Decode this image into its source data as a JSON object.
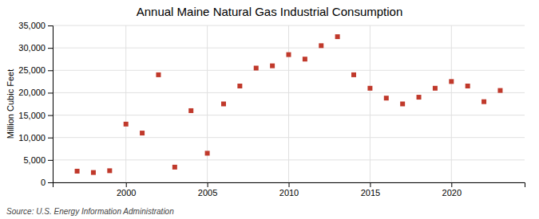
{
  "chart_data": {
    "type": "scatter",
    "title": "Annual Maine Natural Gas Industrial Consumption",
    "y_label": "Million Cubic Feet",
    "annotations": [
      "Source: U.S. Energy Information Administration"
    ],
    "x": [
      1997,
      1998,
      1999,
      2000,
      2001,
      2002,
      2003,
      2004,
      2005,
      2006,
      2007,
      2008,
      2009,
      2010,
      2011,
      2012,
      2013,
      2014,
      2015,
      2016,
      2017,
      2018,
      2019,
      2020,
      2021,
      2022,
      2023
    ],
    "values": [
      2500,
      2200,
      2600,
      13000,
      11000,
      24000,
      3400,
      16000,
      6500,
      17500,
      21500,
      25500,
      26000,
      28500,
      27500,
      30500,
      32500,
      24000,
      21000,
      18800,
      17500,
      19000,
      21000,
      22500,
      21500,
      18000,
      20500
    ],
    "color": "#c0392b",
    "marker": "square",
    "xlim": [
      1995.5,
      2024.5
    ],
    "xticks": [
      2000,
      2005,
      2010,
      2015,
      2020
    ],
    "ylim": [
      0,
      35000
    ],
    "yticks": [
      0,
      {
        "value": 5000,
        "label": "5,000"
      },
      {
        "value": 10000,
        "label": "10,000"
      },
      {
        "value": 15000,
        "label": "15,000"
      },
      {
        "value": 20000,
        "label": "20,000"
      },
      {
        "value": 25000,
        "label": "25,000"
      },
      {
        "value": 30000,
        "label": "30,000"
      },
      {
        "value": 35000,
        "label": "35,000"
      }
    ],
    "grid": true
  }
}
